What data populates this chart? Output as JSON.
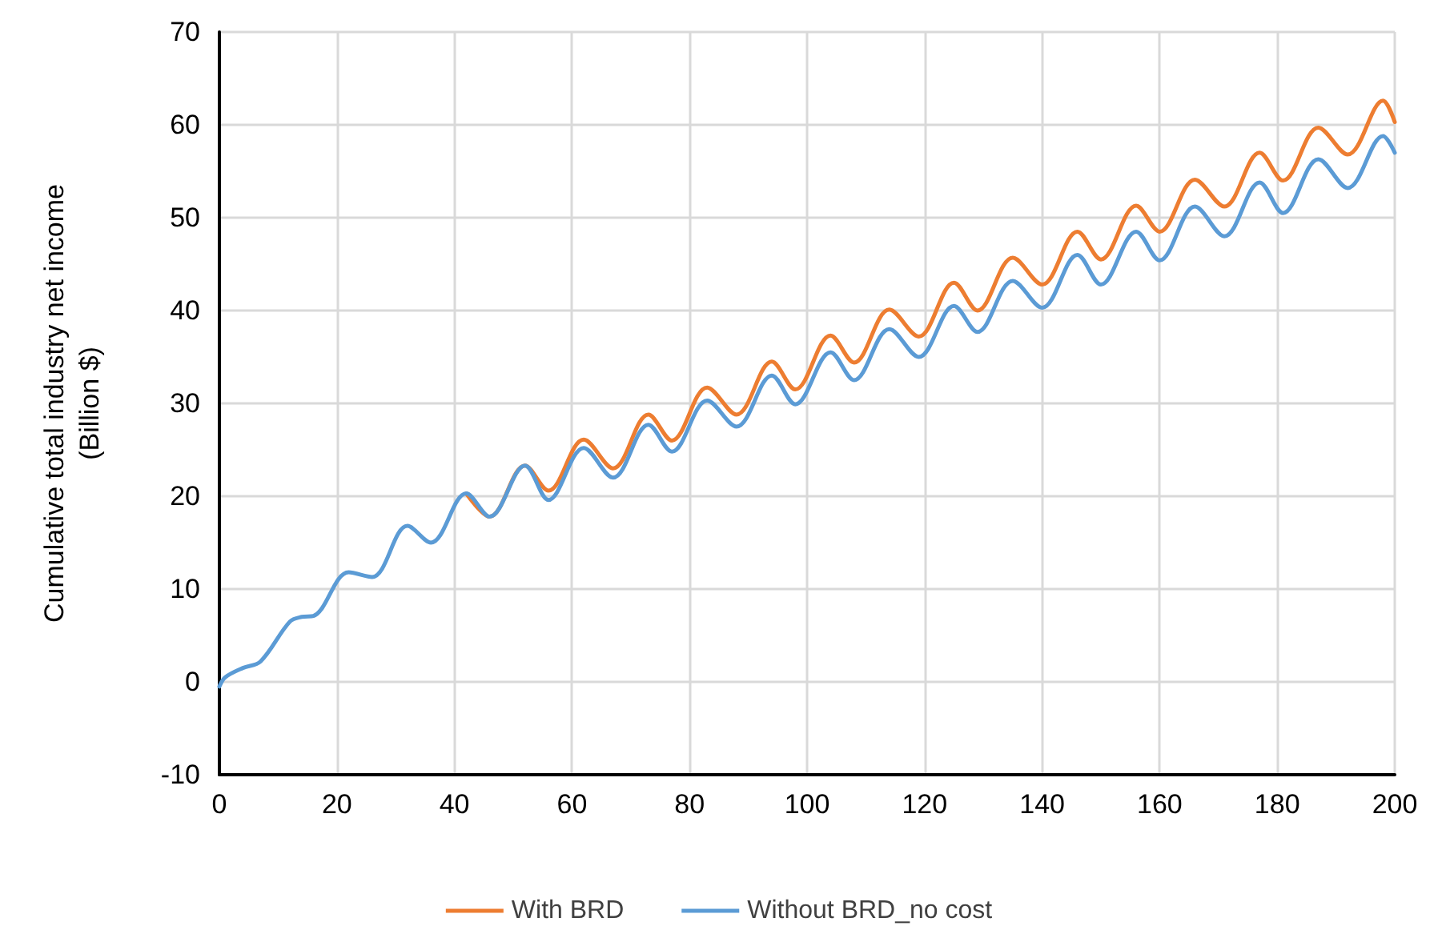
{
  "chart_data": {
    "type": "line",
    "ylabel": "Cumulative total industry net income\n(Billion $)",
    "xlim": [
      0,
      200
    ],
    "xticks": [
      0,
      20,
      40,
      60,
      80,
      100,
      120,
      140,
      160,
      180,
      200
    ],
    "ylim": [
      -10,
      70
    ],
    "yticks": [
      -10,
      0,
      10,
      20,
      30,
      40,
      50,
      60,
      70
    ],
    "grid": true,
    "legend": "bottom",
    "marker": "none",
    "line_style": "solid",
    "series": [
      {
        "name": "With BRD",
        "color": "#ed7d31",
        "x": [
          42,
          46,
          52,
          56,
          62,
          67,
          73,
          77,
          83,
          88,
          94,
          98,
          104,
          108,
          114,
          119,
          125,
          129,
          135,
          140,
          146,
          150,
          156,
          160,
          166,
          171,
          177,
          181,
          187,
          192,
          198,
          200
        ],
        "values": [
          20.3,
          17.8,
          23.3,
          20.6,
          26.1,
          23,
          28.8,
          26,
          31.7,
          28.8,
          34.5,
          31.5,
          37.3,
          34.4,
          40.1,
          37.2,
          43,
          40,
          45.7,
          42.8,
          48.5,
          45.5,
          51.3,
          48.5,
          54.1,
          51.2,
          57,
          54,
          59.7,
          56.8,
          62.6,
          60.3
        ]
      },
      {
        "name": "Without BRD_no cost",
        "color": "#5b9bd5",
        "x": [
          0,
          1,
          4,
          7,
          12,
          14,
          16,
          22,
          26,
          32,
          36,
          42,
          46,
          52,
          56,
          62,
          67,
          73,
          77,
          83,
          88,
          94,
          98,
          104,
          108,
          114,
          119,
          125,
          129,
          135,
          140,
          146,
          150,
          156,
          160,
          166,
          171,
          177,
          181,
          187,
          192,
          198,
          200
        ],
        "values": [
          -0.5,
          0.5,
          1.5,
          2.2,
          6.5,
          7,
          7.1,
          11.8,
          11.3,
          16.8,
          15,
          20.3,
          17.8,
          23.3,
          19.6,
          25.2,
          22,
          27.7,
          24.8,
          30.3,
          27.5,
          33,
          29.9,
          35.5,
          32.5,
          38,
          35,
          40.5,
          37.7,
          43.2,
          40.3,
          46,
          42.8,
          48.5,
          45.4,
          51.2,
          48,
          53.8,
          50.5,
          56.3,
          53.2,
          58.8,
          57
        ]
      }
    ]
  }
}
